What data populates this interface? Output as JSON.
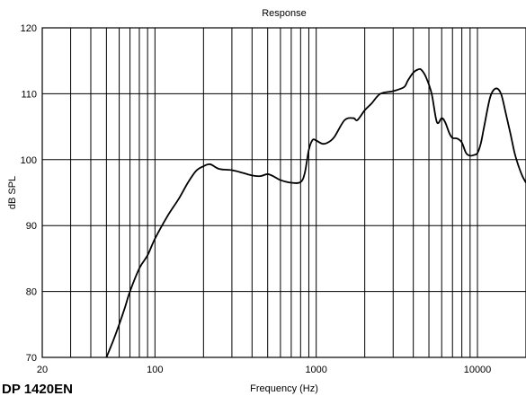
{
  "chart_data": {
    "type": "line",
    "title": "Response",
    "xlabel": "Frequency (Hz)",
    "ylabel": "dB SPL",
    "x_scale": "log",
    "xlim": [
      20,
      20000
    ],
    "ylim": [
      70,
      120
    ],
    "grid": true,
    "x_ticks": [
      {
        "value": 20,
        "label": "20"
      },
      {
        "value": 100,
        "label": "100"
      },
      {
        "value": 1000,
        "label": "1000"
      },
      {
        "value": 10000,
        "label": "10000"
      }
    ],
    "y_ticks": [
      {
        "value": 70,
        "label": "70"
      },
      {
        "value": 80,
        "label": "80"
      },
      {
        "value": 90,
        "label": "90"
      },
      {
        "value": 100,
        "label": "100"
      },
      {
        "value": 110,
        "label": "110"
      },
      {
        "value": 120,
        "label": "120"
      }
    ],
    "series": [
      {
        "name": "",
        "color": "#000000",
        "x": [
          50,
          55,
          60,
          65,
          70,
          80,
          90,
          100,
          120,
          140,
          160,
          180,
          200,
          220,
          250,
          300,
          350,
          400,
          450,
          500,
          550,
          600,
          700,
          800,
          850,
          900,
          950,
          1000,
          1100,
          1200,
          1300,
          1500,
          1700,
          1800,
          2000,
          2200,
          2500,
          3000,
          3500,
          3700,
          4000,
          4300,
          4500,
          4800,
          5200,
          5600,
          6000,
          6300,
          6700,
          7000,
          7500,
          8000,
          8500,
          9000,
          9500,
          10000,
          10500,
          11000,
          12000,
          13000,
          14000,
          15000,
          16000,
          17000,
          18000,
          19000,
          20000
        ],
        "y": [
          70,
          72.5,
          75,
          77.5,
          80,
          83.5,
          85.5,
          88,
          91.5,
          94,
          96.5,
          98.3,
          99,
          99.3,
          98.6,
          98.4,
          98,
          97.6,
          97.5,
          97.8,
          97.4,
          96.9,
          96.5,
          96.6,
          98,
          101.5,
          103,
          102.9,
          102.4,
          102.7,
          103.5,
          106,
          106.3,
          106,
          107.5,
          108.5,
          110,
          110.4,
          111,
          112,
          113.2,
          113.7,
          113.6,
          112.5,
          110,
          105.7,
          106.3,
          105.7,
          104,
          103.3,
          103.2,
          102.6,
          101,
          100.6,
          100.7,
          101,
          102.5,
          105,
          109.5,
          110.8,
          110,
          107,
          104,
          101,
          99,
          97.5,
          96.5
        ]
      }
    ]
  },
  "model_label": "DP 1420EN"
}
